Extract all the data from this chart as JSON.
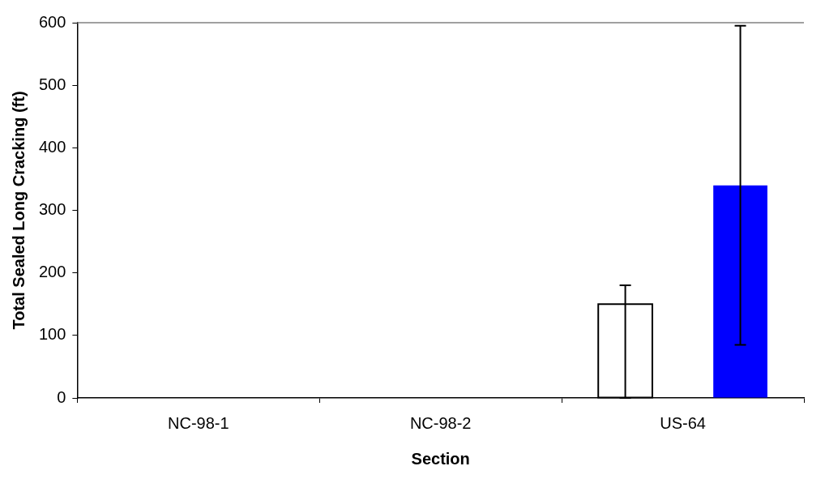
{
  "chart_data": {
    "type": "bar",
    "xlabel": "Section",
    "ylabel": "Total Sealed Long Cracking (ft)",
    "categories": [
      "NC-98-1",
      "NC-98-2",
      "US-64"
    ],
    "series": [
      {
        "color": "#ffffff",
        "values": [
          0,
          0,
          150
        ],
        "errors": [
          null,
          null,
          [
            0,
            180
          ]
        ]
      },
      {
        "color": "#0000ff",
        "values": [
          0,
          0,
          340
        ],
        "errors": [
          null,
          null,
          255
        ]
      }
    ],
    "ylim": [
      0,
      600
    ],
    "yticks": [
      0,
      100,
      200,
      300,
      400,
      500,
      600
    ],
    "grid": false,
    "legend": false
  }
}
